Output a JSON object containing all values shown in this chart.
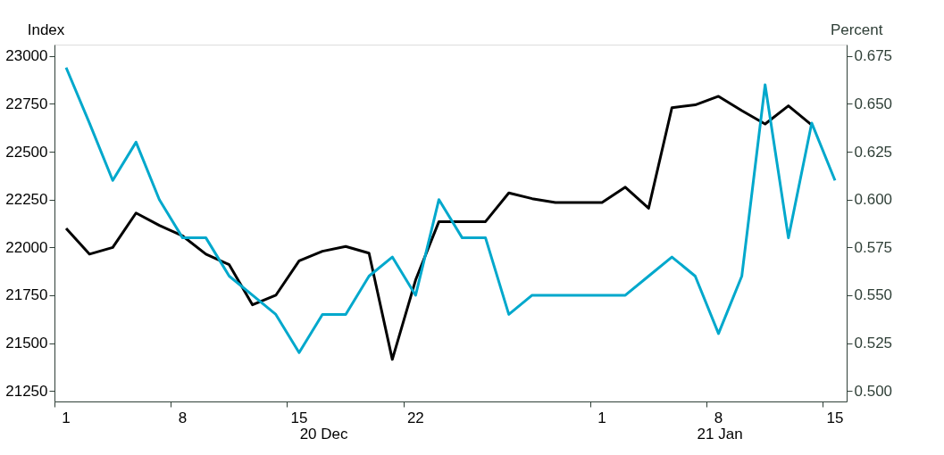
{
  "chart_data": {
    "type": "line",
    "ylabel": "Index",
    "y2label": "Percent",
    "categories": [
      "1",
      null,
      null,
      null,
      null,
      "8",
      null,
      null,
      null,
      null,
      "15",
      null,
      null,
      null,
      null,
      "22",
      null,
      null,
      null,
      null,
      null,
      null,
      null,
      "1",
      null,
      null,
      null,
      null,
      "8",
      null,
      null,
      null,
      null,
      "15"
    ],
    "ylim": [
      21195,
      23060
    ],
    "yticks": [
      21250,
      21500,
      21750,
      22000,
      22250,
      22500,
      22750,
      23000
    ],
    "y2lim": [
      0.4945,
      0.681
    ],
    "y2ticks": [
      {
        "value": 0.5,
        "label": "0.500"
      },
      {
        "value": 0.525,
        "label": "0.525"
      },
      {
        "value": 0.55,
        "label": "0.550"
      },
      {
        "value": 0.575,
        "label": "0.575"
      },
      {
        "value": 0.6,
        "label": "0.600"
      },
      {
        "value": 0.625,
        "label": "0.625"
      },
      {
        "value": 0.65,
        "label": "0.650"
      },
      {
        "value": 0.675,
        "label": "0.675"
      }
    ],
    "series": [
      {
        "color": "#000000",
        "values": [
          22100,
          21965,
          22000,
          22180,
          22115,
          22060,
          21965,
          21910,
          21700,
          21750,
          21930,
          21980,
          22005,
          21970,
          21415,
          21830,
          22135,
          22135,
          22135,
          22285,
          22255,
          22235,
          22235,
          22235,
          22315,
          22205,
          22730,
          22745,
          22790,
          22715,
          22645,
          22740,
          22640,
          null
        ]
      },
      {
        "color": "#00a8cc",
        "axis": "y2",
        "values": [
          0.669,
          0.64,
          0.61,
          0.63,
          0.6,
          0.58,
          0.58,
          0.56,
          0.55,
          0.54,
          0.52,
          0.54,
          0.54,
          0.56,
          0.57,
          0.55,
          0.6,
          0.58,
          0.58,
          0.54,
          0.55,
          0.55,
          0.55,
          0.55,
          0.55,
          0.56,
          0.57,
          0.56,
          0.53,
          0.56,
          0.66,
          0.58,
          0.64,
          0.61
        ]
      }
    ],
    "annotations": [
      "20 Dec",
      "21 Jan"
    ]
  }
}
